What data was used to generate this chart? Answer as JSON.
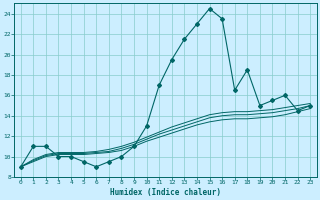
{
  "title": "",
  "xlabel": "Humidex (Indice chaleur)",
  "ylabel": "",
  "xlim": [
    -0.5,
    23.5
  ],
  "ylim": [
    8,
    25
  ],
  "yticks": [
    8,
    10,
    12,
    14,
    16,
    18,
    20,
    22,
    24
  ],
  "xticks": [
    0,
    1,
    2,
    3,
    4,
    5,
    6,
    7,
    8,
    9,
    10,
    11,
    12,
    13,
    14,
    15,
    16,
    17,
    18,
    19,
    20,
    21,
    22,
    23
  ],
  "bg_color": "#cceeff",
  "grid_color": "#88cccc",
  "line_color": "#006666",
  "main_series": [
    9,
    11,
    11,
    10,
    10,
    9.5,
    9,
    9.5,
    10,
    11,
    13,
    17,
    19.5,
    21.5,
    23,
    24.5,
    23.5,
    16.5,
    18.5,
    15,
    15.5,
    16,
    14.5,
    15
  ],
  "smooth_series1": [
    9.0,
    9.5,
    10.0,
    10.2,
    10.2,
    10.2,
    10.3,
    10.4,
    10.6,
    11.0,
    11.5,
    11.9,
    12.3,
    12.7,
    13.1,
    13.4,
    13.6,
    13.7,
    13.7,
    13.8,
    13.9,
    14.1,
    14.4,
    14.7
  ],
  "smooth_series2": [
    9.0,
    9.6,
    10.1,
    10.3,
    10.3,
    10.3,
    10.4,
    10.5,
    10.8,
    11.2,
    11.7,
    12.2,
    12.6,
    13.0,
    13.4,
    13.8,
    14.0,
    14.1,
    14.1,
    14.2,
    14.3,
    14.5,
    14.7,
    15.0
  ],
  "smooth_series3": [
    9.0,
    9.7,
    10.2,
    10.4,
    10.4,
    10.4,
    10.5,
    10.7,
    11.0,
    11.4,
    11.9,
    12.4,
    12.9,
    13.3,
    13.7,
    14.1,
    14.3,
    14.4,
    14.4,
    14.5,
    14.6,
    14.8,
    15.0,
    15.2
  ]
}
